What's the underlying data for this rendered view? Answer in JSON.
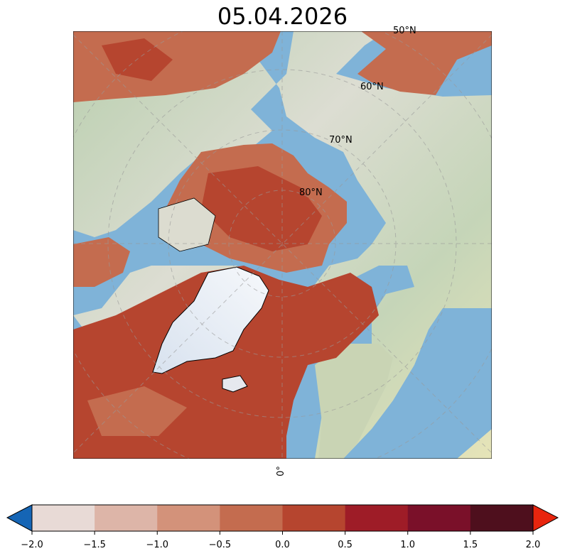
{
  "title": "05.04.2026",
  "map": {
    "projection": "north-polar-stereographic",
    "lat_labels": [
      "50°N",
      "60°N",
      "70°N",
      "80°N"
    ],
    "lon_label": "0°",
    "colors": {
      "ocean": "#7fb3d8",
      "land": "#d9dcc8",
      "ice": "#eef2f8",
      "coast": "#000000"
    }
  },
  "colorbar": {
    "ticks": [
      "−2.0",
      "−1.5",
      "−1.0",
      "−0.5",
      "0.0",
      "0.5",
      "1.0",
      "1.5",
      "2.0"
    ],
    "bins": [
      "#e8dad6",
      "#ddb5a8",
      "#d3927a",
      "#c46c4f",
      "#b6452f",
      "#9e1c27",
      "#7a1029",
      "#4e0f1d"
    ],
    "under_color": "#1565b5",
    "over_color": "#e8250e",
    "extend": "both"
  }
}
